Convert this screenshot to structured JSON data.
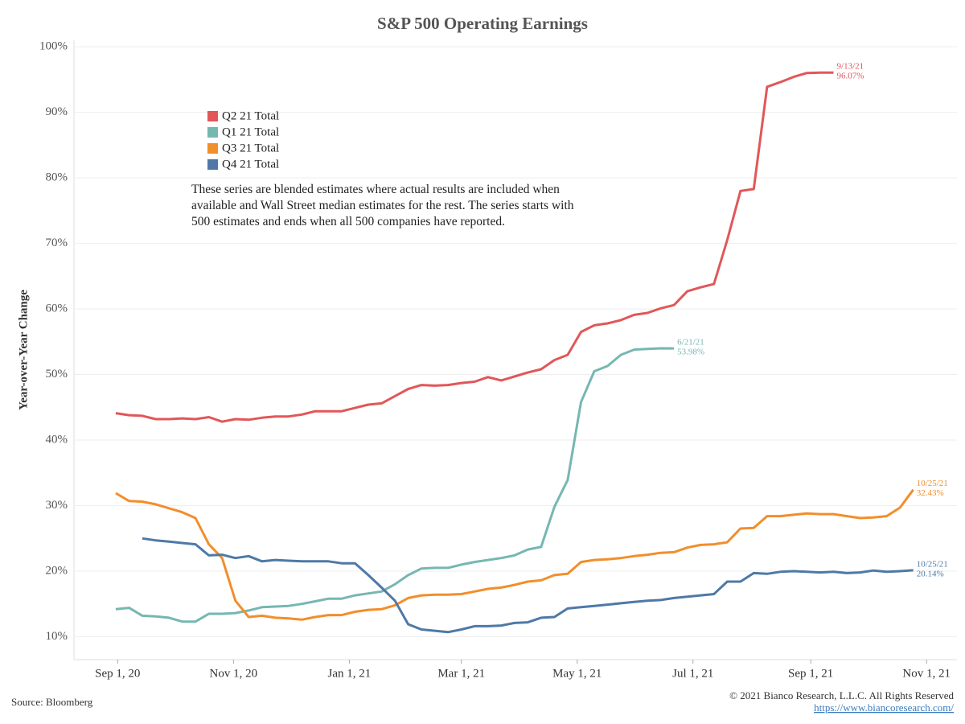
{
  "chart_data": {
    "type": "line",
    "title": "S&P 500 Operating Earnings",
    "y_label": "Year-over-Year Change",
    "note": "These series are blended estimates where actual results are included when available and Wall Street median estimates for the rest.  The series starts with 500 estimates and ends when all 500 companies have reported.",
    "source": "Source: Bloomberg",
    "copyright": "© 2021 Bianco Research, L.L.C. All Rights Reserved",
    "url": "https://www.biancoresearch.com/",
    "legend": "top-left",
    "grid": true,
    "xlim": [
      "2020-08-09",
      "2021-11-17"
    ],
    "xticks": [
      {
        "value": "2020-09-01",
        "label": "Sep 1, 20"
      },
      {
        "value": "2020-11-01",
        "label": "Nov 1, 20"
      },
      {
        "value": "2021-01-01",
        "label": "Jan 1, 21"
      },
      {
        "value": "2021-03-01",
        "label": "Mar 1, 21"
      },
      {
        "value": "2021-05-01",
        "label": "May 1, 21"
      },
      {
        "value": "2021-07-01",
        "label": "Jul 1, 21"
      },
      {
        "value": "2021-09-01",
        "label": "Sep 1, 21"
      },
      {
        "value": "2021-11-01",
        "label": "Nov 1, 21"
      }
    ],
    "ylim": [
      6.5,
      101
    ],
    "yticks": [
      {
        "value": 10,
        "label": "10%"
      },
      {
        "value": 20,
        "label": "20%"
      },
      {
        "value": 30,
        "label": "30%"
      },
      {
        "value": 40,
        "label": "40%"
      },
      {
        "value": 50,
        "label": "50%"
      },
      {
        "value": 60,
        "label": "60%"
      },
      {
        "value": 70,
        "label": "70%"
      },
      {
        "value": 80,
        "label": "80%"
      },
      {
        "value": 90,
        "label": "90%"
      },
      {
        "value": 100,
        "label": "100%"
      }
    ],
    "x": [
      "2020-08-31",
      "2020-09-07",
      "2020-09-14",
      "2020-09-21",
      "2020-09-28",
      "2020-10-05",
      "2020-10-12",
      "2020-10-19",
      "2020-10-26",
      "2020-11-02",
      "2020-11-09",
      "2020-11-16",
      "2020-11-23",
      "2020-11-30",
      "2020-12-07",
      "2020-12-14",
      "2020-12-21",
      "2020-12-28",
      "2021-01-04",
      "2021-01-11",
      "2021-01-18",
      "2021-01-25",
      "2021-02-01",
      "2021-02-08",
      "2021-02-15",
      "2021-02-22",
      "2021-03-01",
      "2021-03-08",
      "2021-03-15",
      "2021-03-22",
      "2021-03-29",
      "2021-04-05",
      "2021-04-12",
      "2021-04-19",
      "2021-04-26",
      "2021-05-03",
      "2021-05-10",
      "2021-05-17",
      "2021-05-24",
      "2021-05-31",
      "2021-06-07",
      "2021-06-14",
      "2021-06-21",
      "2021-06-28",
      "2021-07-05",
      "2021-07-12",
      "2021-07-19",
      "2021-07-26",
      "2021-08-02",
      "2021-08-09",
      "2021-08-16",
      "2021-08-23",
      "2021-08-30",
      "2021-09-06",
      "2021-09-13",
      "2021-09-20",
      "2021-09-27",
      "2021-10-04",
      "2021-10-11",
      "2021-10-18",
      "2021-10-25"
    ],
    "series": [
      {
        "name": "Q2 21 Total",
        "color": "#e15759",
        "end_label": {
          "date": "9/13/21",
          "value": "96.07%"
        },
        "values": [
          44.1,
          43.8,
          43.7,
          43.2,
          43.2,
          43.3,
          43.2,
          43.5,
          42.8,
          43.2,
          43.1,
          43.4,
          43.6,
          43.6,
          43.9,
          44.4,
          44.4,
          44.4,
          44.9,
          45.4,
          45.6,
          46.7,
          47.8,
          48.4,
          48.3,
          48.4,
          48.7,
          48.9,
          49.6,
          49.1,
          49.7,
          50.3,
          50.8,
          52.2,
          53.0,
          56.5,
          57.5,
          57.8,
          58.3,
          59.1,
          59.4,
          60.1,
          60.6,
          62.7,
          63.3,
          63.8,
          70.5,
          78.0,
          78.3,
          93.9,
          94.6,
          95.4,
          96.0,
          96.05,
          96.07,
          null,
          null,
          null,
          null,
          null,
          null
        ]
      },
      {
        "name": "Q1 21 Total",
        "color": "#76b7b2",
        "end_label": {
          "date": "6/21/21",
          "value": "53.98%"
        },
        "values": [
          14.2,
          14.4,
          13.2,
          13.1,
          12.9,
          12.3,
          12.3,
          13.5,
          13.5,
          13.6,
          14.0,
          14.5,
          14.6,
          14.7,
          15.0,
          15.4,
          15.8,
          15.8,
          16.3,
          16.6,
          16.9,
          18.0,
          19.4,
          20.4,
          20.5,
          20.5,
          21.0,
          21.4,
          21.7,
          22.0,
          22.4,
          23.3,
          23.7,
          29.8,
          33.9,
          45.8,
          50.5,
          51.3,
          53.0,
          53.8,
          53.9,
          54.0,
          53.98,
          null,
          null,
          null,
          null,
          null,
          null,
          null,
          null,
          null,
          null,
          null,
          null,
          null,
          null,
          null,
          null,
          null,
          null
        ]
      },
      {
        "name": "Q3 21 Total",
        "color": "#f28e2b",
        "end_label": {
          "date": "10/25/21",
          "value": "32.43%"
        },
        "values": [
          31.9,
          30.7,
          30.6,
          30.2,
          29.6,
          29.0,
          28.1,
          24.1,
          22.0,
          15.5,
          13.0,
          13.2,
          12.9,
          12.8,
          12.6,
          13.0,
          13.3,
          13.3,
          13.8,
          14.1,
          14.2,
          14.8,
          15.9,
          16.3,
          16.4,
          16.4,
          16.5,
          16.9,
          17.3,
          17.5,
          17.9,
          18.4,
          18.6,
          19.4,
          19.6,
          21.4,
          21.7,
          21.8,
          22.0,
          22.3,
          22.5,
          22.8,
          22.9,
          23.6,
          24.0,
          24.1,
          24.4,
          26.5,
          26.6,
          28.4,
          28.4,
          28.6,
          28.8,
          28.7,
          28.7,
          28.4,
          28.1,
          28.2,
          28.4,
          29.7,
          32.43
        ]
      },
      {
        "name": "Q4 21 Total",
        "color": "#4e79a7",
        "end_label": {
          "date": "10/25/21",
          "value": "20.14%"
        },
        "values": [
          null,
          null,
          25.0,
          24.7,
          24.5,
          24.3,
          24.1,
          22.4,
          22.5,
          22.0,
          22.3,
          21.5,
          21.7,
          21.6,
          21.5,
          21.5,
          21.5,
          21.2,
          21.2,
          19.4,
          17.5,
          15.5,
          11.9,
          11.1,
          10.9,
          10.7,
          11.1,
          11.6,
          11.6,
          11.7,
          12.1,
          12.2,
          12.9,
          13.0,
          14.3,
          14.5,
          14.7,
          14.9,
          15.1,
          15.3,
          15.5,
          15.6,
          15.9,
          16.1,
          16.3,
          16.5,
          18.4,
          18.4,
          19.7,
          19.6,
          19.9,
          20.0,
          19.9,
          19.8,
          19.9,
          19.7,
          19.8,
          20.1,
          19.9,
          20.0,
          20.14
        ]
      }
    ]
  }
}
